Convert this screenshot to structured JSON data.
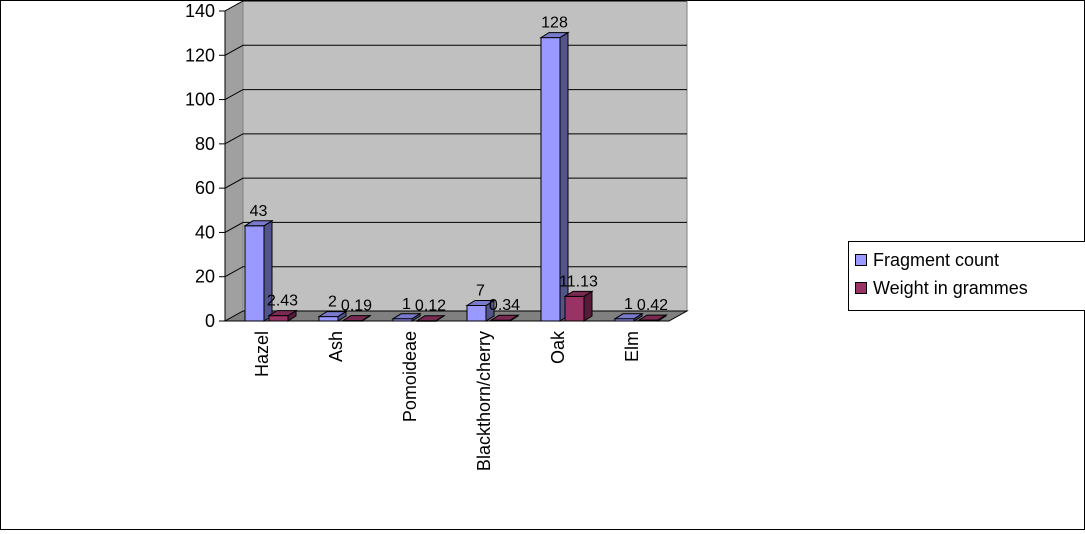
{
  "chart_data": {
    "type": "bar",
    "categories": [
      "Hazel",
      "Ash",
      "Pomoideae",
      "Blackthorn/cherry",
      "Oak",
      "Elm"
    ],
    "series": [
      {
        "name": "Fragment count",
        "values": [
          43,
          2,
          1,
          7,
          128,
          1
        ],
        "labels": [
          "43",
          "2",
          "1",
          "7",
          "128",
          "1"
        ],
        "color": "#9999ff"
      },
      {
        "name": "Weight in grammes",
        "values": [
          2.43,
          0.19,
          0.12,
          0.34,
          11.13,
          0.42
        ],
        "labels": [
          "2.43",
          "0.19",
          "0.12",
          "0.34",
          "11.13",
          "0.42"
        ],
        "color": "#993366"
      }
    ],
    "yticks": [
      0,
      20,
      40,
      60,
      80,
      100,
      120,
      140
    ],
    "ylim": [
      0,
      140
    ],
    "grid": true,
    "three_d": true,
    "plot_background": "#c0c0c0",
    "legend_position": "right"
  }
}
